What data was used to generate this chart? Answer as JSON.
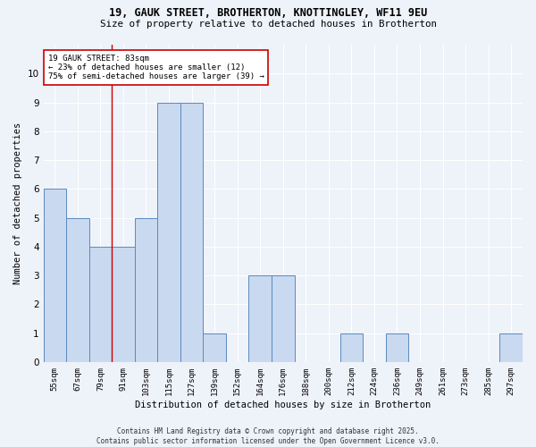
{
  "title_line1": "19, GAUK STREET, BROTHERTON, KNOTTINGLEY, WF11 9EU",
  "title_line2": "Size of property relative to detached houses in Brotherton",
  "xlabel": "Distribution of detached houses by size in Brotherton",
  "ylabel": "Number of detached properties",
  "categories": [
    "55sqm",
    "67sqm",
    "79sqm",
    "91sqm",
    "103sqm",
    "115sqm",
    "127sqm",
    "139sqm",
    "152sqm",
    "164sqm",
    "176sqm",
    "188sqm",
    "200sqm",
    "212sqm",
    "224sqm",
    "236sqm",
    "249sqm",
    "261sqm",
    "273sqm",
    "285sqm",
    "297sqm"
  ],
  "values": [
    6,
    5,
    4,
    4,
    5,
    9,
    9,
    1,
    0,
    3,
    3,
    0,
    0,
    1,
    0,
    1,
    0,
    0,
    0,
    0,
    1
  ],
  "bar_color": "#c9d9f0",
  "bar_edge_color": "#5a8abf",
  "background_color": "#eef2f9",
  "grid_color": "#ffffff",
  "annotation_text": "19 GAUK STREET: 83sqm\n← 23% of detached houses are smaller (12)\n75% of semi-detached houses are larger (39) →",
  "annotation_box_color": "#ffffff",
  "annotation_box_edge_color": "#cc0000",
  "vline_x": 2.5,
  "vline_color": "#cc0000",
  "ylim": [
    0,
    11
  ],
  "yticks": [
    0,
    1,
    2,
    3,
    4,
    5,
    6,
    7,
    8,
    9,
    10,
    11
  ],
  "footer_line1": "Contains HM Land Registry data © Crown copyright and database right 2025.",
  "footer_line2": "Contains public sector information licensed under the Open Government Licence v3.0."
}
